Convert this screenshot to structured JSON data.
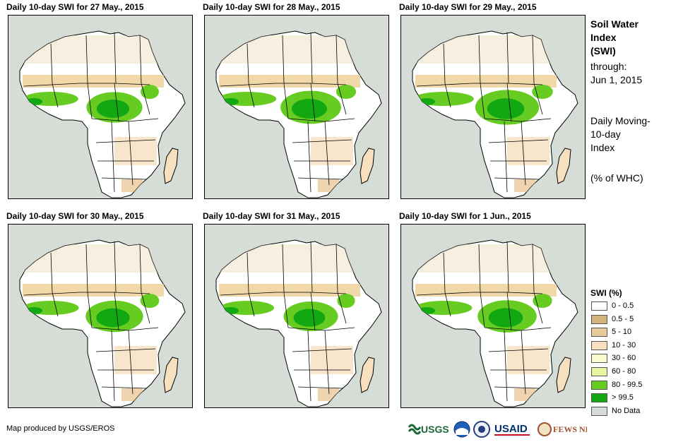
{
  "panels": [
    {
      "title": "Daily 10-day  SWI for 27 May., 2015",
      "wet": 0.72
    },
    {
      "title": "Daily 10-day  SWI for 28 May., 2015",
      "wet": 0.78
    },
    {
      "title": "Daily 10-day  SWI for 29 May., 2015",
      "wet": 0.82
    },
    {
      "title": "Daily 10-day  SWI for 30 May., 2015",
      "wet": 0.74
    },
    {
      "title": "Daily 10-day  SWI for 31 May., 2015",
      "wet": 0.7
    },
    {
      "title": "Daily 10-day  SWI for 1 Jun., 2015",
      "wet": 0.76
    }
  ],
  "side": {
    "title_line1": "Soil Water",
    "title_line2": "Index",
    "title_line3": "(SWI)",
    "through_label": "through:",
    "through_date": "Jun 1, 2015",
    "desc_line1": "Daily Moving-",
    "desc_line2": "10-day",
    "desc_line3": "Index",
    "units": "(% of WHC)"
  },
  "legend": {
    "title": "SWI (%)",
    "items": [
      {
        "label": "0 - 0.5",
        "color": "#ffffff"
      },
      {
        "label": "0.5 - 5",
        "color": "#d2b47a"
      },
      {
        "label": "5 - 10",
        "color": "#e8c99a"
      },
      {
        "label": "10 - 30",
        "color": "#f6e0bf"
      },
      {
        "label": "30 - 60",
        "color": "#fbfbd0"
      },
      {
        "label": "60 - 80",
        "color": "#e6f5a0"
      },
      {
        "label": "80 - 99.5",
        "color": "#66cc22"
      },
      {
        "label": "> 99.5",
        "color": "#12a812"
      },
      {
        "label": "No Data",
        "color": "#d6ddd6"
      }
    ]
  },
  "credit": "Map produced by USGS/EROS",
  "logos": {
    "usgs": "USGS",
    "noaa": "NOAA",
    "usaid": "USAID",
    "fewsnet": "FEWS NET"
  }
}
